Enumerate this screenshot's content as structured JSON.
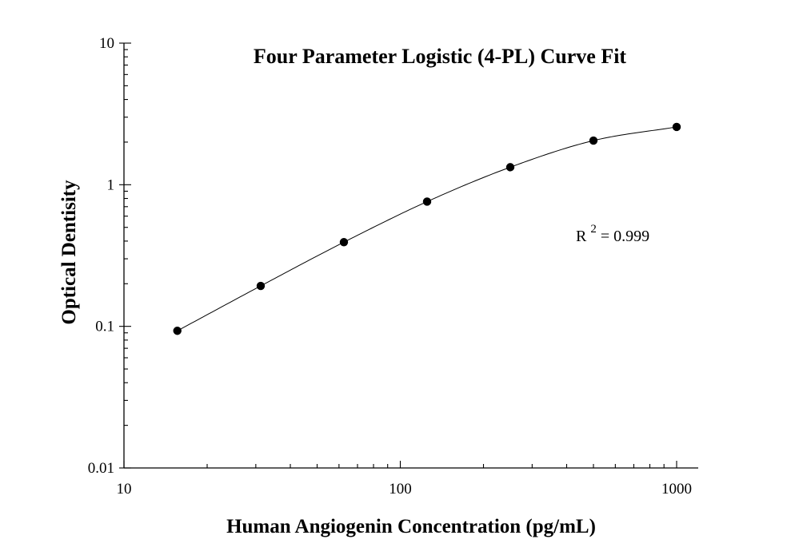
{
  "chart_data": {
    "type": "scatter",
    "title": "Four Parameter Logistic (4-PL) Curve Fit",
    "xlabel": "Human Angiogenin Concentration (pg/mL)",
    "ylabel": "Optical Dentisity",
    "x_scale": "log",
    "y_scale": "log",
    "xlim": [
      10,
      1200
    ],
    "ylim": [
      0.01,
      10
    ],
    "x_ticks": [
      10,
      100,
      1000
    ],
    "x_tick_labels": [
      "10",
      "100",
      "1000"
    ],
    "y_ticks": [
      0.01,
      0.1,
      1,
      10
    ],
    "y_tick_labels": [
      "0.01",
      "0.1",
      "1",
      "10"
    ],
    "grid": false,
    "series": [
      {
        "x": [
          15.6,
          31.25,
          62.5,
          125,
          250,
          500,
          1000
        ],
        "y": [
          0.093,
          0.193,
          0.393,
          0.76,
          1.33,
          2.05,
          2.56
        ]
      }
    ],
    "fit_curve": {
      "model": "4-PL",
      "x_range": [
        15.6,
        1000
      ]
    },
    "annotations": {
      "r2_label": "R",
      "r2_sup": "2",
      "r2_value": "= 0.999"
    }
  }
}
